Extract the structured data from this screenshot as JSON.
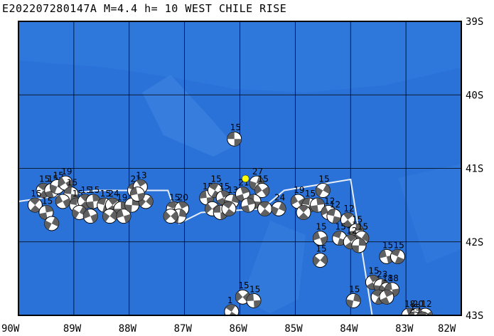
{
  "title": "E202207280147A M=4.4 h= 10 WEST CHILE RISE",
  "x_labels": [
    "90W",
    "89W",
    "88W",
    "87W",
    "86W",
    "85W",
    "84W",
    "83W",
    "82W"
  ],
  "y_labels": [
    "39S",
    "40S",
    "41S",
    "42S",
    "43S"
  ],
  "colors": {
    "ocean": "#2a72d8",
    "ocean_light": "#3f86e2",
    "grid": "#000000",
    "ridge": "#e8eef8",
    "epicenter": "#ffff00"
  },
  "lon_range": [
    -90,
    -82
  ],
  "lat_range": [
    -43,
    -39
  ],
  "epicenter": {
    "lon": -85.9,
    "lat": -41.14
  },
  "ridge_line": [
    [
      -90,
      -41.45
    ],
    [
      -88.6,
      -41.3
    ],
    [
      -87.3,
      -41.3
    ],
    [
      -87.1,
      -41.75
    ],
    [
      -86.7,
      -41.6
    ],
    [
      -85.6,
      -41.55
    ],
    [
      -85.2,
      -41.3
    ],
    [
      -84,
      -41.15
    ],
    [
      -83.6,
      -43.05
    ],
    [
      -82.6,
      -43.0
    ],
    [
      -82.5,
      -43.1
    ]
  ],
  "mechanisms": [
    {
      "lon": -86.1,
      "lat": -40.6,
      "depth": "15"
    },
    {
      "lon": -89.55,
      "lat": -41.3,
      "depth": "15"
    },
    {
      "lon": -89.4,
      "lat": -41.3,
      "depth": "15"
    },
    {
      "lon": -89.3,
      "lat": -41.25,
      "depth": "15"
    },
    {
      "lon": -89.15,
      "lat": -41.2,
      "depth": "19"
    },
    {
      "lon": -89.05,
      "lat": -41.35,
      "depth": "15"
    },
    {
      "lon": -89.7,
      "lat": -41.5,
      "depth": "15"
    },
    {
      "lon": -89.5,
      "lat": -41.6,
      "depth": "15"
    },
    {
      "lon": -89.4,
      "lat": -41.75,
      "depth": ""
    },
    {
      "lon": -89.2,
      "lat": -41.45,
      "depth": ""
    },
    {
      "lon": -88.95,
      "lat": -41.5,
      "depth": "15"
    },
    {
      "lon": -88.8,
      "lat": -41.45,
      "depth": "15"
    },
    {
      "lon": -88.65,
      "lat": -41.45,
      "depth": "15"
    },
    {
      "lon": -88.9,
      "lat": -41.6,
      "depth": ""
    },
    {
      "lon": -88.7,
      "lat": -41.65,
      "depth": ""
    },
    {
      "lon": -88.45,
      "lat": -41.5,
      "depth": "15"
    },
    {
      "lon": -88.3,
      "lat": -41.5,
      "depth": "24"
    },
    {
      "lon": -88.15,
      "lat": -41.55,
      "depth": "19"
    },
    {
      "lon": -88.35,
      "lat": -41.65,
      "depth": ""
    },
    {
      "lon": -88.1,
      "lat": -41.65,
      "depth": ""
    },
    {
      "lon": -87.9,
      "lat": -41.3,
      "depth": "21"
    },
    {
      "lon": -87.8,
      "lat": -41.25,
      "depth": "13"
    },
    {
      "lon": -87.95,
      "lat": -41.5,
      "depth": ""
    },
    {
      "lon": -87.7,
      "lat": -41.45,
      "depth": ""
    },
    {
      "lon": -87.85,
      "lat": -41.35,
      "depth": ""
    },
    {
      "lon": -87.2,
      "lat": -41.55,
      "depth": "15"
    },
    {
      "lon": -87.05,
      "lat": -41.55,
      "depth": "20"
    },
    {
      "lon": -87.1,
      "lat": -41.65,
      "depth": ""
    },
    {
      "lon": -87.25,
      "lat": -41.65,
      "depth": ""
    },
    {
      "lon": -86.6,
      "lat": -41.4,
      "depth": "15"
    },
    {
      "lon": -86.45,
      "lat": -41.3,
      "depth": "15"
    },
    {
      "lon": -86.3,
      "lat": -41.4,
      "depth": "15"
    },
    {
      "lon": -86.15,
      "lat": -41.45,
      "depth": "13"
    },
    {
      "lon": -86.5,
      "lat": -41.55,
      "depth": ""
    },
    {
      "lon": -86.35,
      "lat": -41.6,
      "depth": ""
    },
    {
      "lon": -86.2,
      "lat": -41.55,
      "depth": ""
    },
    {
      "lon": -85.95,
      "lat": -41.35,
      "depth": "21"
    },
    {
      "lon": -85.7,
      "lat": -41.2,
      "depth": "27"
    },
    {
      "lon": -85.6,
      "lat": -41.3,
      "depth": "15"
    },
    {
      "lon": -85.75,
      "lat": -41.45,
      "depth": ""
    },
    {
      "lon": -85.55,
      "lat": -41.55,
      "depth": ""
    },
    {
      "lon": -85.85,
      "lat": -41.5,
      "depth": ""
    },
    {
      "lon": -85.3,
      "lat": -41.55,
      "depth": "24"
    },
    {
      "lon": -84.95,
      "lat": -41.45,
      "depth": "19"
    },
    {
      "lon": -84.75,
      "lat": -41.5,
      "depth": "15"
    },
    {
      "lon": -84.85,
      "lat": -41.6,
      "depth": ""
    },
    {
      "lon": -84.6,
      "lat": -41.5,
      "depth": ""
    },
    {
      "lon": -84.5,
      "lat": -41.3,
      "depth": "15"
    },
    {
      "lon": -84.4,
      "lat": -41.6,
      "depth": "12"
    },
    {
      "lon": -84.3,
      "lat": -41.65,
      "depth": "12"
    },
    {
      "lon": -84.05,
      "lat": -41.7,
      "depth": "12"
    },
    {
      "lon": -83.9,
      "lat": -41.85,
      "depth": "15"
    },
    {
      "lon": -83.8,
      "lat": -41.95,
      "depth": "15"
    },
    {
      "lon": -84.55,
      "lat": -41.95,
      "depth": "15"
    },
    {
      "lon": -84.2,
      "lat": -41.95,
      "depth": "15"
    },
    {
      "lon": -84.0,
      "lat": -42.0,
      "depth": "12"
    },
    {
      "lon": -83.85,
      "lat": -42.05,
      "depth": ""
    },
    {
      "lon": -84.55,
      "lat": -42.25,
      "depth": "15"
    },
    {
      "lon": -83.35,
      "lat": -42.2,
      "depth": "15"
    },
    {
      "lon": -83.15,
      "lat": -42.2,
      "depth": "15"
    },
    {
      "lon": -83.6,
      "lat": -42.55,
      "depth": "15"
    },
    {
      "lon": -83.45,
      "lat": -42.6,
      "depth": "23"
    },
    {
      "lon": -83.35,
      "lat": -42.65,
      "depth": "18"
    },
    {
      "lon": -83.25,
      "lat": -42.65,
      "depth": "18"
    },
    {
      "lon": -83.5,
      "lat": -42.75,
      "depth": ""
    },
    {
      "lon": -83.35,
      "lat": -42.75,
      "depth": ""
    },
    {
      "lon": -83.95,
      "lat": -42.8,
      "depth": "15"
    },
    {
      "lon": -85.95,
      "lat": -42.75,
      "depth": "15"
    },
    {
      "lon": -85.75,
      "lat": -42.8,
      "depth": "15"
    },
    {
      "lon": -86.15,
      "lat": -42.95,
      "depth": "1"
    },
    {
      "lon": -82.95,
      "lat": -43.0,
      "depth": "18"
    },
    {
      "lon": -82.8,
      "lat": -43.0,
      "depth": "20"
    },
    {
      "lon": -82.65,
      "lat": -43.0,
      "depth": "12"
    },
    {
      "lon": -82.85,
      "lat": -43.05,
      "depth": "15"
    },
    {
      "lon": -82.7,
      "lat": -43.05,
      "depth": ""
    }
  ]
}
